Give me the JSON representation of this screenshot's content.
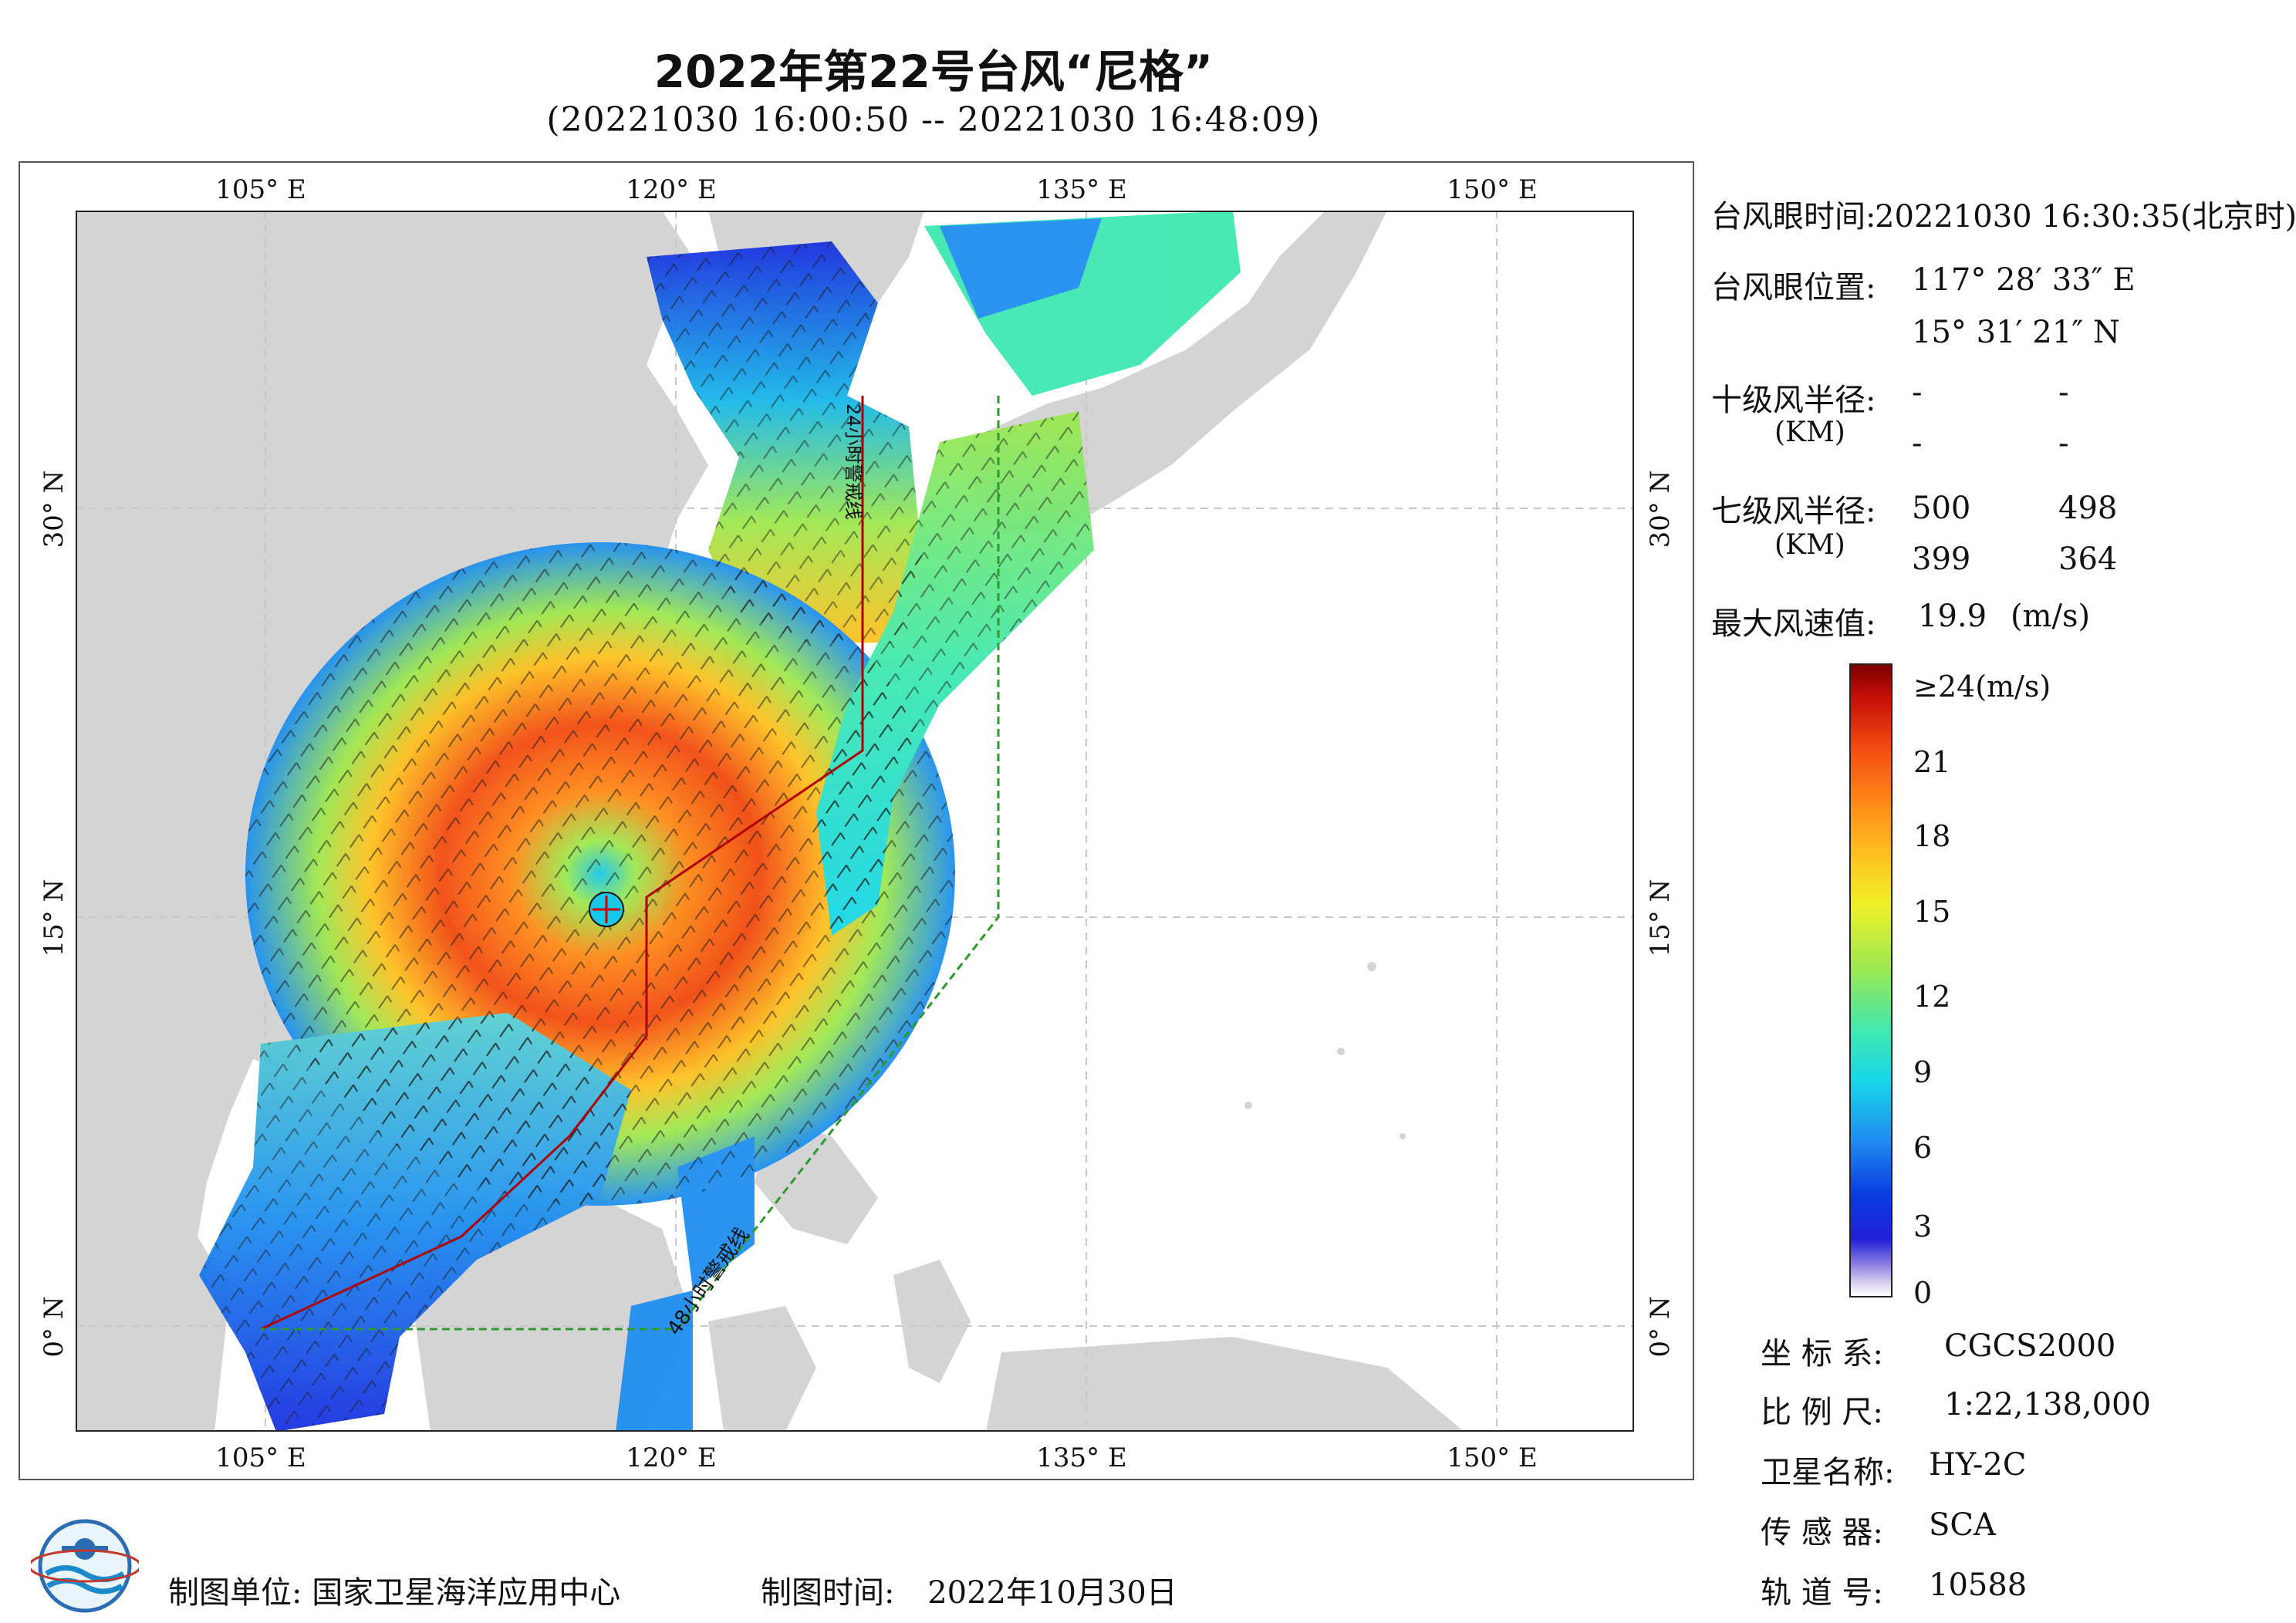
{
  "title": "2022年第22号台风“尼格”",
  "subtitle": "(20221030 16:00:50 -- 20221030 16:48:09)",
  "axes": {
    "lon_labels": [
      "105° E",
      "120° E",
      "135° E",
      "150° E"
    ],
    "lat_labels": [
      "30° N",
      "15° N",
      "0° N"
    ]
  },
  "map_annotations": {
    "warn24": "24小时警戒线",
    "warn48": "48小时警戒线"
  },
  "info": {
    "eye_time_label": "台风眼时间:",
    "eye_time_value": "20221030 16:30:35(北京时)",
    "eye_pos_label": "台风眼位置:",
    "eye_lon": "117° 28′ 33″ E",
    "eye_lat": "15° 31′ 21″ N",
    "r10_label": "十级风半径:",
    "r10_unit": "(KM)",
    "r10_values": [
      "-",
      "-",
      "-",
      "-"
    ],
    "r7_label": "七级风半径:",
    "r7_unit": "(KM)",
    "r7_values": [
      "500",
      "498",
      "399",
      "364"
    ],
    "max_wind_label": "最大风速值:",
    "max_wind_value": "19.9",
    "max_wind_unit": "(m/s)"
  },
  "colorbar": {
    "ticks": [
      "≥24(m/s)",
      "21",
      "18",
      "15",
      "12",
      "9",
      "6",
      "3",
      "0"
    ],
    "colors": [
      "#ffffff",
      "#8b7de0",
      "#2020d8",
      "#1f8ff0",
      "#18d6e8",
      "#9ee850",
      "#f0f028",
      "#ff8a18",
      "#f24a10",
      "#7a0000"
    ]
  },
  "meta": {
    "crs_label": "坐 标 系:",
    "crs_value": "CGCS2000",
    "scale_label": "比 例 尺:",
    "scale_value": "1:22,138,000",
    "sat_label": "卫星名称:",
    "sat_value": "HY-2C",
    "sensor_label": "传 感 器:",
    "sensor_value": "SCA",
    "orbit_label": "轨 道 号:",
    "orbit_value": "10588"
  },
  "footer": {
    "maker_label": "制图单位:",
    "maker_value": "国家卫星海洋应用中心",
    "time_label": "制图时间:",
    "time_value": "2022年10月30日"
  }
}
